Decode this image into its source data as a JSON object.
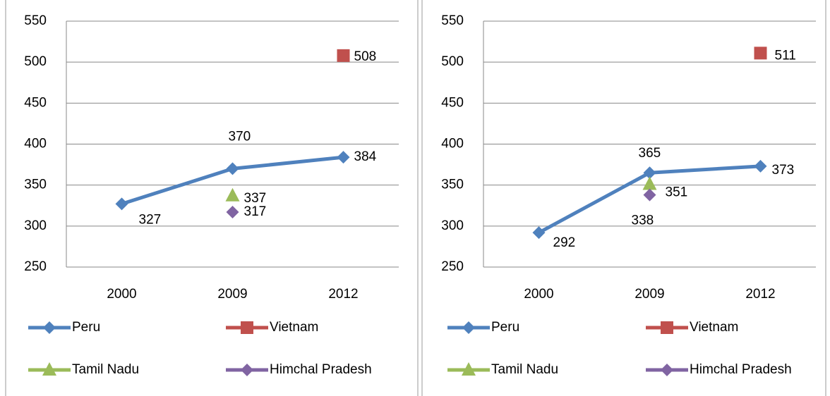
{
  "chart_data": [
    {
      "type": "line",
      "categories": [
        "2000",
        "2009",
        "2012"
      ],
      "series": [
        {
          "name": "Peru",
          "color": "#4f81bd",
          "marker": "diamond",
          "values": [
            327,
            370,
            384
          ]
        },
        {
          "name": "Vietnam",
          "color": "#c0504d",
          "marker": "square",
          "values": [
            null,
            null,
            508
          ]
        },
        {
          "name": "Tamil Nadu",
          "color": "#9bbb59",
          "marker": "triangle",
          "values": [
            null,
            337,
            null
          ]
        },
        {
          "name": "Himchal Pradesh",
          "color": "#8064a2",
          "marker": "diamond",
          "values": [
            null,
            317,
            null
          ]
        }
      ],
      "ylim": [
        250,
        550
      ],
      "yticks": [
        250,
        300,
        350,
        400,
        450,
        500,
        550
      ],
      "grid": true,
      "legend": "bottom"
    },
    {
      "type": "line",
      "categories": [
        "2000",
        "2009",
        "2012"
      ],
      "series": [
        {
          "name": "Peru",
          "color": "#4f81bd",
          "marker": "diamond",
          "values": [
            292,
            365,
            373
          ]
        },
        {
          "name": "Vietnam",
          "color": "#c0504d",
          "marker": "square",
          "values": [
            null,
            null,
            511
          ]
        },
        {
          "name": "Tamil Nadu",
          "color": "#9bbb59",
          "marker": "triangle",
          "values": [
            null,
            351,
            null
          ]
        },
        {
          "name": "Himchal Pradesh",
          "color": "#8064a2",
          "marker": "diamond",
          "values": [
            null,
            338,
            null
          ]
        }
      ],
      "ylim": [
        250,
        550
      ],
      "yticks": [
        250,
        300,
        350,
        400,
        450,
        500,
        550
      ],
      "grid": true,
      "legend": "bottom"
    }
  ]
}
